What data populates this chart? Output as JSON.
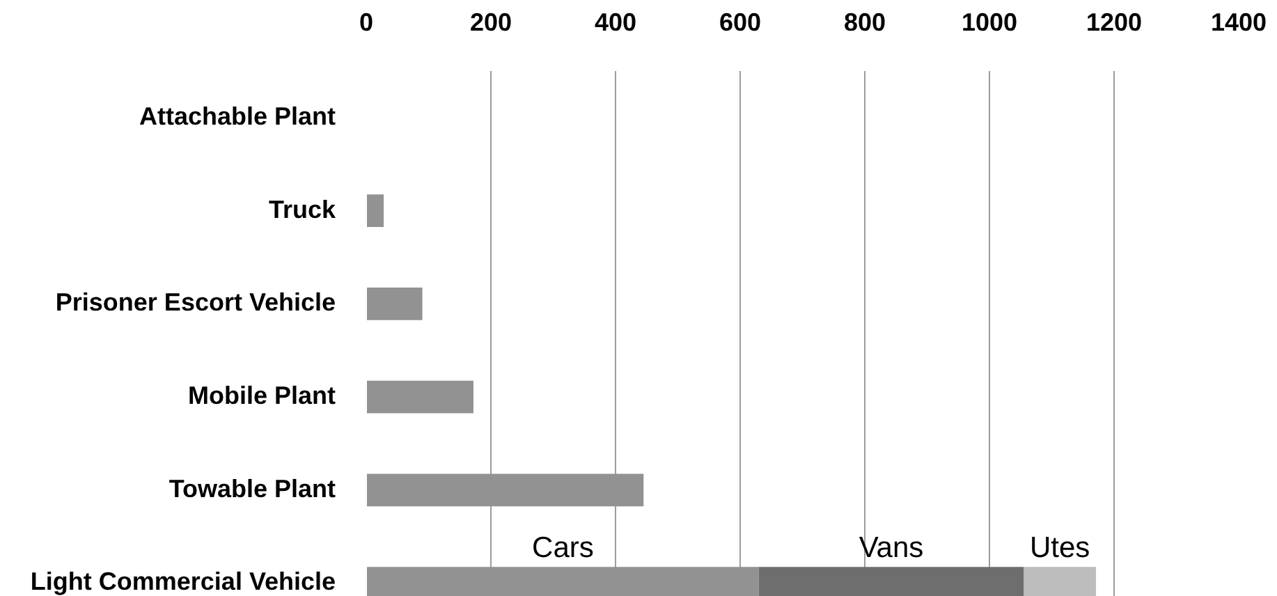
{
  "chart_data": {
    "type": "bar",
    "orientation": "horizontal",
    "stacked": true,
    "categories": [
      "Attachable Plant",
      "Truck",
      "Prisoner Escort Vehicle",
      "Mobile Plant",
      "Towable Plant",
      "Light Commercial Vehicle"
    ],
    "series": [
      {
        "color": "#929292",
        "values": [
          null,
          28,
          90,
          172,
          445,
          null
        ]
      },
      {
        "name": "Cars",
        "color": "#929292",
        "values": [
          null,
          null,
          null,
          null,
          null,
          630
        ]
      },
      {
        "name": "Vans",
        "color": "#6e6e6e",
        "values": [
          null,
          null,
          null,
          null,
          null,
          425
        ]
      },
      {
        "name": "Utes",
        "color": "#bdbdbd",
        "values": [
          null,
          null,
          null,
          null,
          null,
          116
        ]
      }
    ],
    "xlim": [
      0,
      1400
    ],
    "xticks": [
      0,
      200,
      400,
      600,
      800,
      1000,
      1200,
      1400
    ],
    "grid": "x"
  }
}
